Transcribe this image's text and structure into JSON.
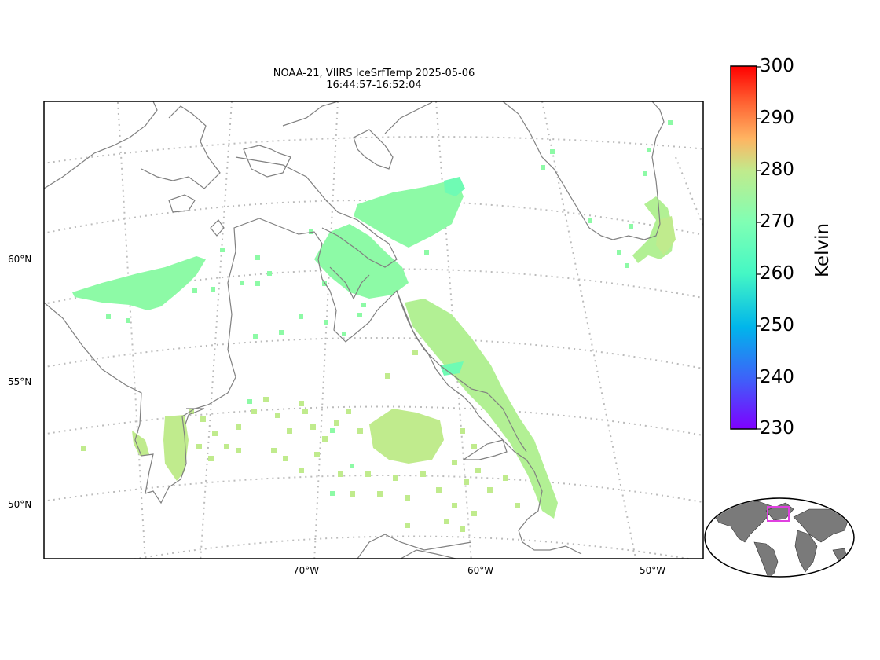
{
  "title": {
    "line1": "NOAA-21, VIIRS IceSrfTemp 2025-05-06",
    "line2": "16:44:57-16:52:04"
  },
  "lat_labels": [
    "60°N",
    "55°N",
    "50°N"
  ],
  "lon_labels": [
    "70°W",
    "60°W",
    "50°W"
  ],
  "colorbar": {
    "label": "Kelvin",
    "ticks": [
      "300",
      "290",
      "280",
      "270",
      "260",
      "250",
      "240",
      "230"
    ],
    "vmin": 230,
    "vmax": 300,
    "colormap": "rainbow",
    "colors": [
      "#7f00ff",
      "#3d62f9",
      "#00b5eb",
      "#45f8c4",
      "#80ffb4",
      "#c0eb8d",
      "#ffb462",
      "#ff6232",
      "#ff0000"
    ]
  },
  "map": {
    "region": "Labrador Sea / Hudson Strait / Quebec-Labrador",
    "coastline_color": "#808080",
    "graticule_color": "#bbbbbb",
    "data_value_range_K": [
      262,
      275
    ],
    "inset_highlight_color": "#e040e0"
  }
}
